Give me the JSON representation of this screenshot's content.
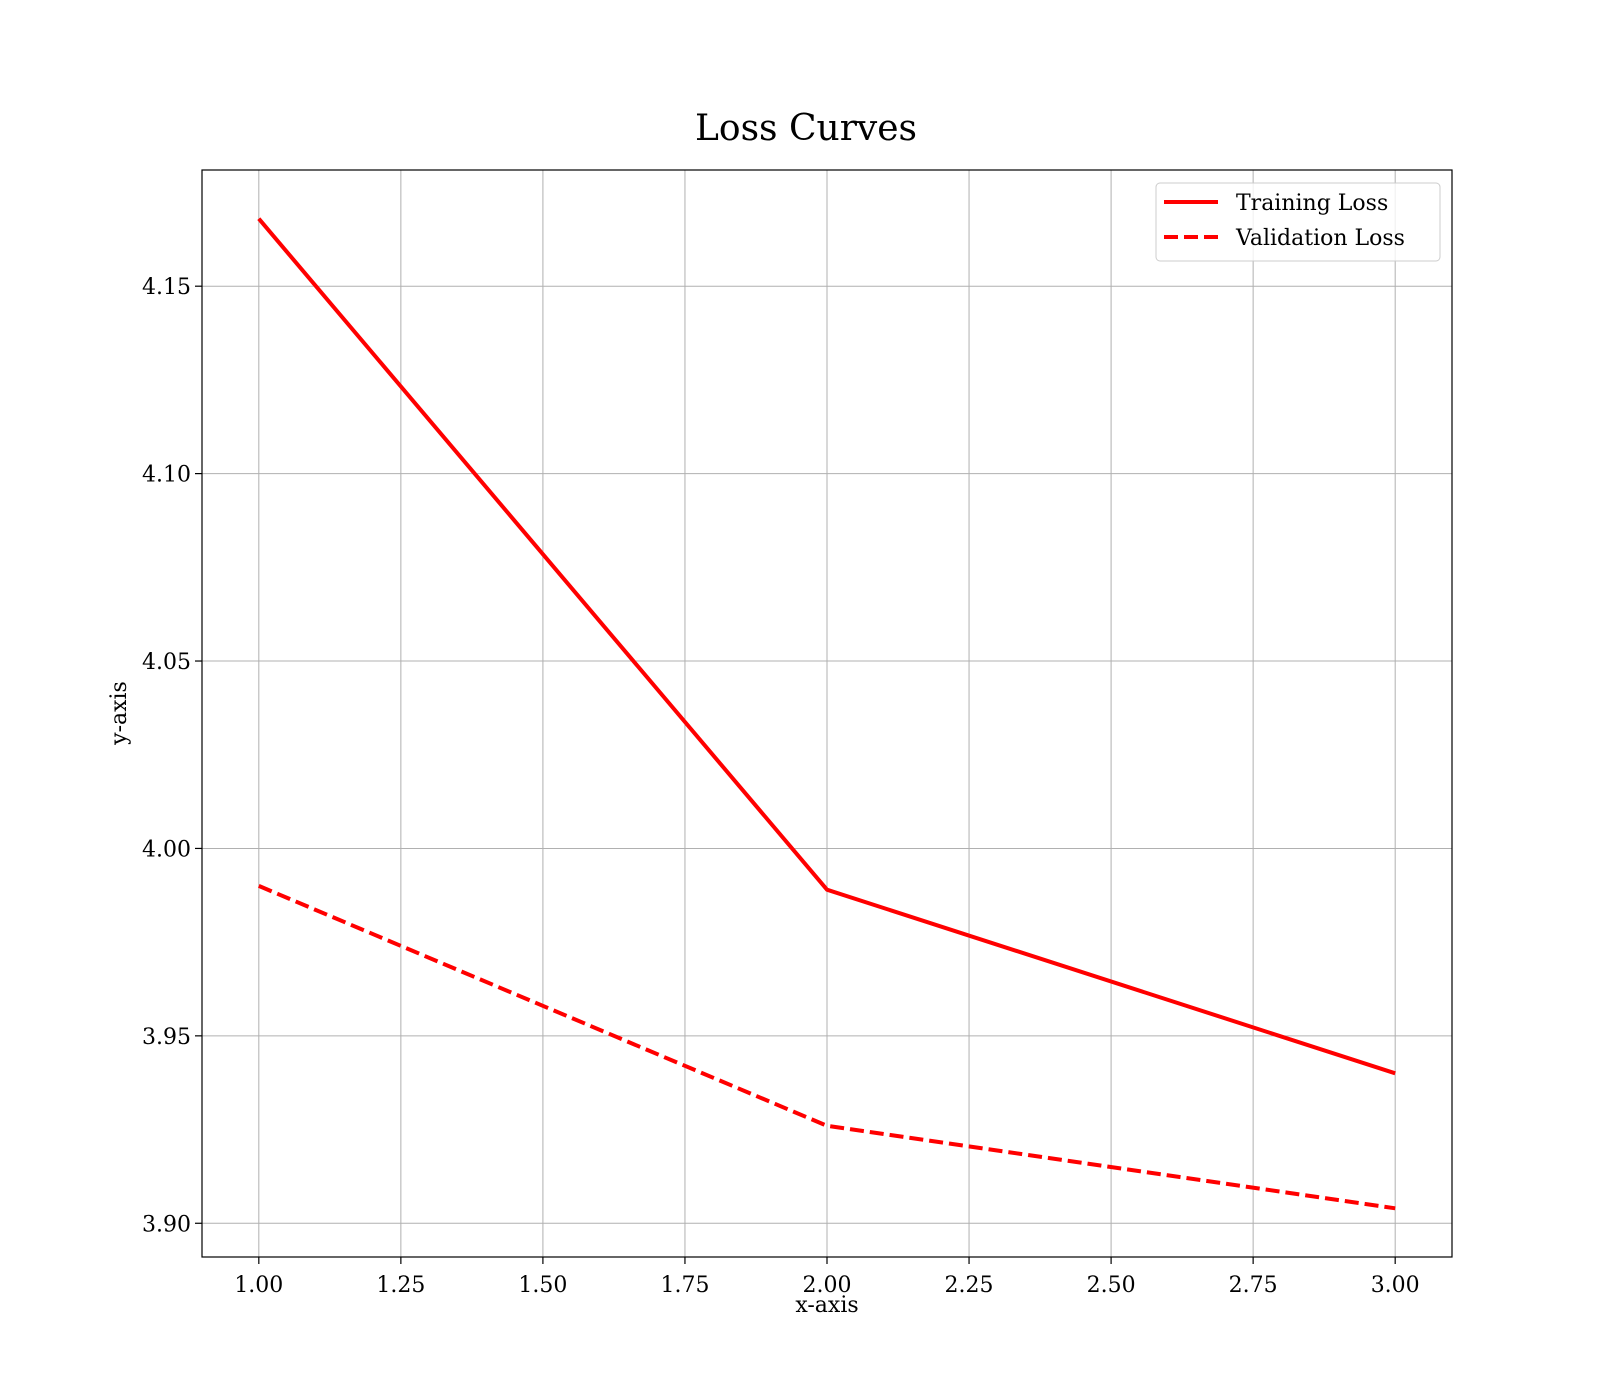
{
  "chart_data": {
    "type": "line",
    "title": "Loss Curves",
    "xlabel": "x-axis",
    "ylabel": "y-axis",
    "xlim": [
      0.9,
      3.1
    ],
    "ylim": [
      3.891,
      4.181
    ],
    "x_ticks": [
      "1.00",
      "1.25",
      "1.50",
      "1.75",
      "2.00",
      "2.25",
      "2.50",
      "2.75",
      "3.00"
    ],
    "y_ticks": [
      "3.90",
      "3.95",
      "4.00",
      "4.05",
      "4.10",
      "4.15"
    ],
    "grid": true,
    "legend_position": "top-right",
    "x": [
      1,
      2,
      3
    ],
    "series": [
      {
        "name": "Training Loss",
        "values": [
          4.168,
          3.989,
          3.94
        ],
        "color": "#ff0000",
        "style": "solid"
      },
      {
        "name": "Validation Loss",
        "values": [
          3.99,
          3.926,
          3.904
        ],
        "color": "#ff0000",
        "style": "dashed"
      }
    ]
  }
}
